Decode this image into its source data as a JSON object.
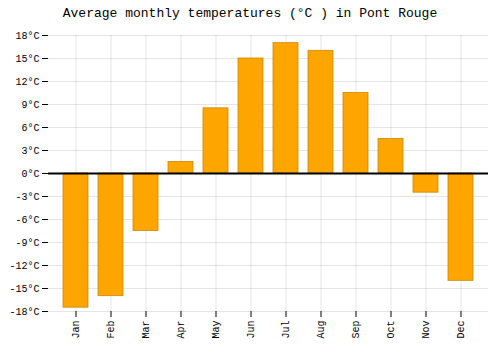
{
  "chart_data": {
    "type": "bar",
    "title": "Average monthly temperatures (°C ) in Pont Rouge",
    "categories": [
      "Jan",
      "Feb",
      "Mar",
      "Apr",
      "May",
      "Jun",
      "Jul",
      "Aug",
      "Sep",
      "Oct",
      "Nov",
      "Dec"
    ],
    "values": [
      -17.5,
      -16.0,
      -7.5,
      1.5,
      8.5,
      15.0,
      17.0,
      16.0,
      10.5,
      4.5,
      -2.5,
      -14.0
    ],
    "color": "#FFA500",
    "ylim": [
      -18,
      18
    ],
    "yticks": [
      {
        "value": -18,
        "label": "-18°C"
      },
      {
        "value": -15,
        "label": "-15°C"
      },
      {
        "value": -12,
        "label": "-12°C"
      },
      {
        "value": -9,
        "label": "-9°C"
      },
      {
        "value": -6,
        "label": "-6°C"
      },
      {
        "value": -3,
        "label": "-3°C"
      },
      {
        "value": 0,
        "label": "0°C"
      },
      {
        "value": 3,
        "label": "3°C"
      },
      {
        "value": 6,
        "label": "6°C"
      },
      {
        "value": 9,
        "label": "9°C"
      },
      {
        "value": 12,
        "label": "12°C"
      },
      {
        "value": 15,
        "label": "15°C"
      },
      {
        "value": 18,
        "label": "18°C"
      }
    ],
    "grid": true
  }
}
